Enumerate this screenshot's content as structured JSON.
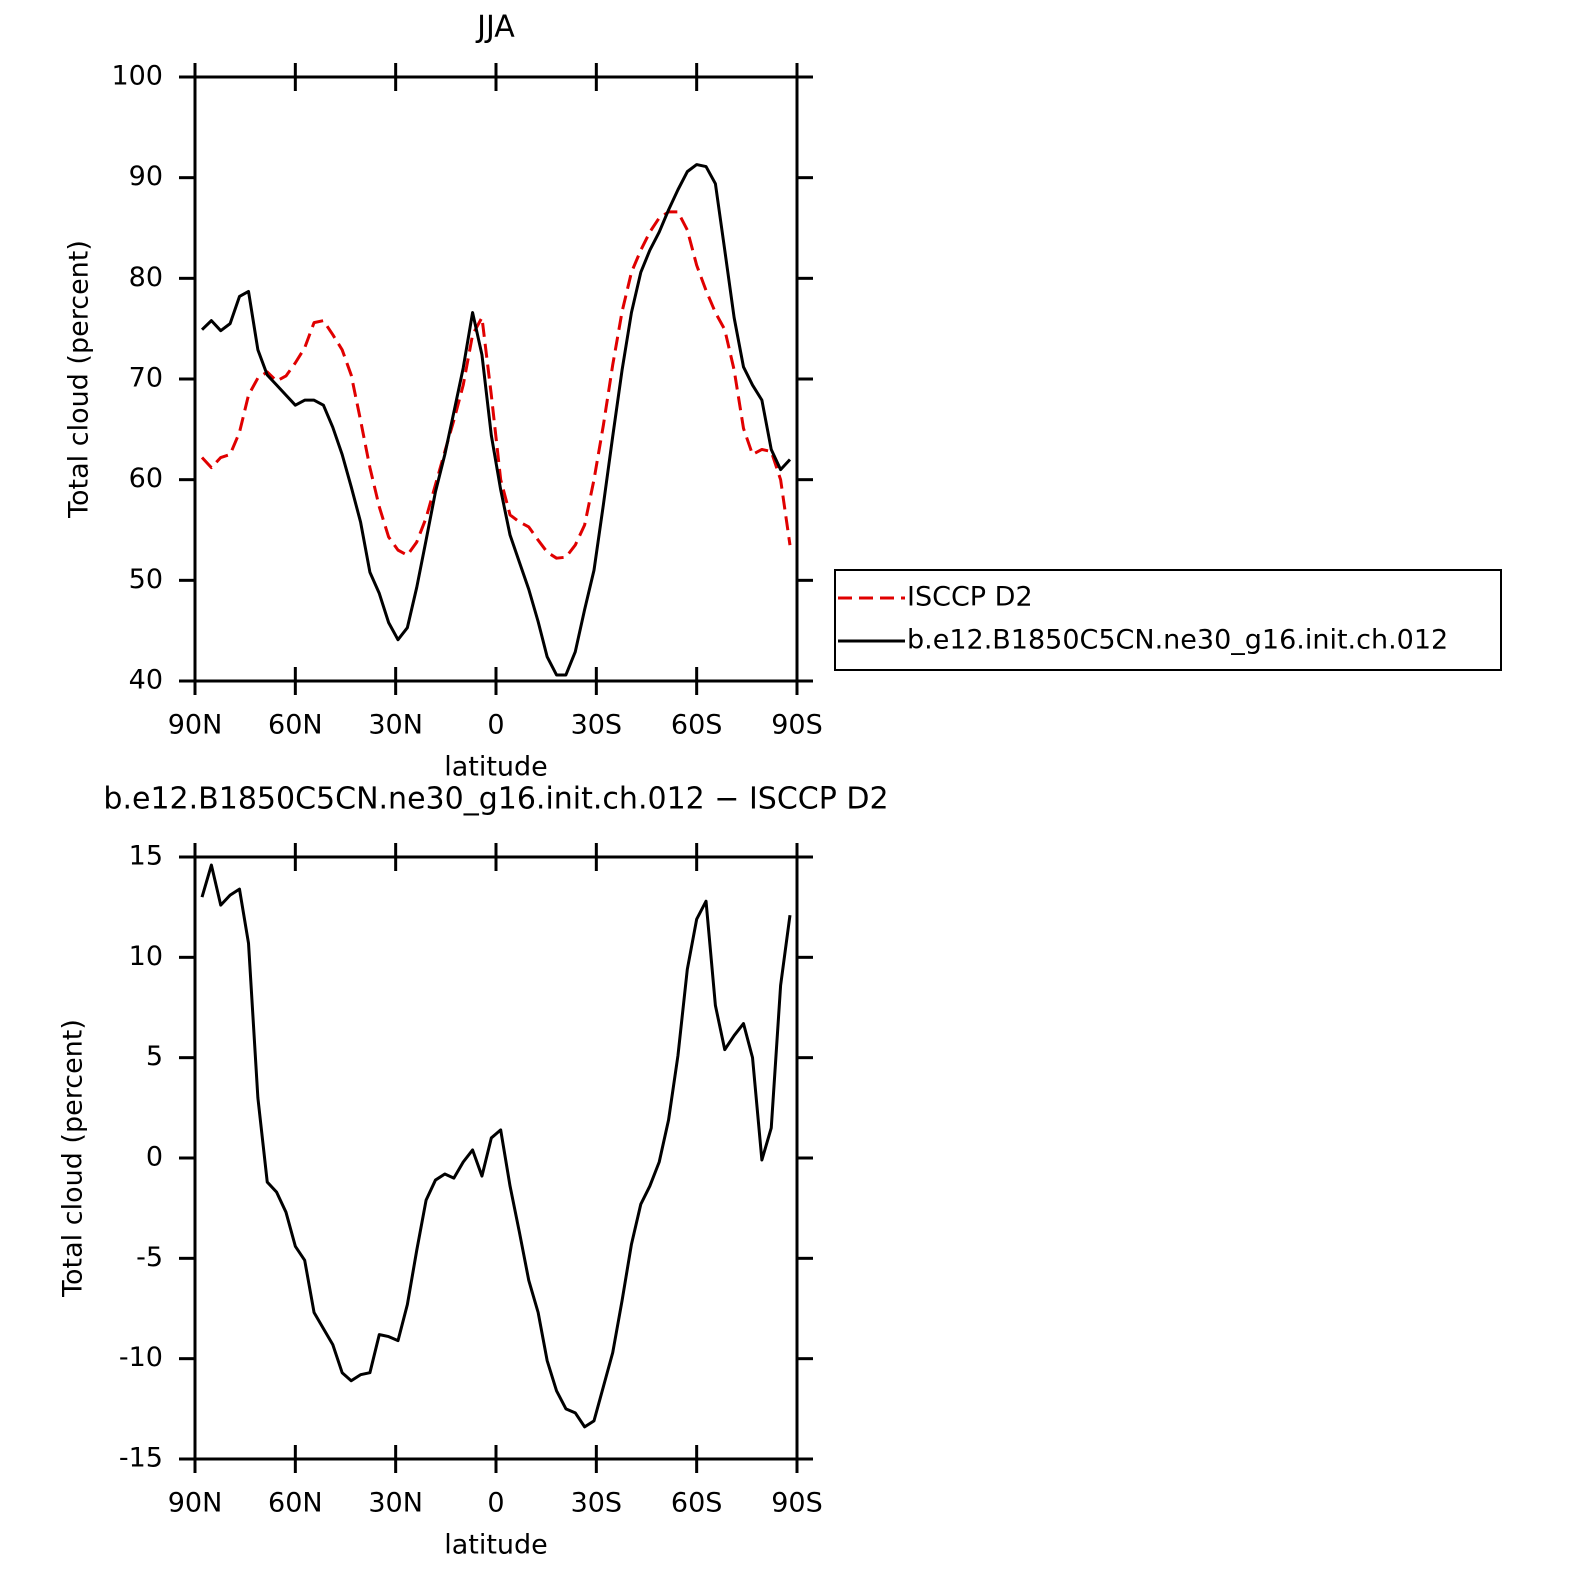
{
  "chart_data": [
    {
      "type": "line",
      "title": "JJA",
      "xlabel": "latitude",
      "ylabel": "Total cloud (percent)",
      "x": [
        87.9,
        85.1,
        82.3,
        79.5,
        76.7,
        74.0,
        71.2,
        68.4,
        65.6,
        62.8,
        60.0,
        57.2,
        54.4,
        51.6,
        48.8,
        46.0,
        43.3,
        40.5,
        37.7,
        34.9,
        32.1,
        29.3,
        26.5,
        23.7,
        20.9,
        18.1,
        15.3,
        12.6,
        9.8,
        7.0,
        4.2,
        1.4,
        -1.4,
        -4.2,
        -7.0,
        -9.8,
        -12.6,
        -15.3,
        -18.1,
        -20.9,
        -23.7,
        -26.5,
        -29.3,
        -32.1,
        -34.9,
        -37.7,
        -40.5,
        -43.3,
        -46.0,
        -48.8,
        -51.6,
        -54.4,
        -57.2,
        -60.0,
        -62.8,
        -65.6,
        -68.4,
        -71.2,
        -74.0,
        -76.7,
        -79.5,
        -82.3,
        -85.1,
        -87.9
      ],
      "series": [
        {
          "name": "ISCCP D2",
          "color": "#e00000",
          "linestyle": "dashed",
          "values": [
            62.2,
            61.2,
            62.2,
            62.5,
            64.7,
            68.4,
            70.1,
            70.7,
            69.8,
            70.3,
            71.6,
            73.1,
            75.6,
            75.8,
            74.4,
            72.9,
            70.4,
            65.9,
            61.2,
            57.3,
            54.3,
            53.0,
            52.5,
            53.8,
            56.2,
            59.5,
            62.8,
            65.9,
            69.4,
            74.4,
            76.1,
            68.4,
            60.0,
            56.5,
            55.8,
            55.3,
            54.0,
            52.8,
            52.2,
            52.3,
            53.5,
            55.5,
            60.0,
            65.4,
            71.4,
            76.7,
            80.6,
            82.8,
            84.6,
            86.0,
            86.6,
            86.6,
            84.8,
            81.3,
            78.8,
            76.6,
            74.9,
            70.9,
            65.1,
            62.5,
            63.0,
            62.8,
            60.0,
            53.5
          ]
        },
        {
          "name": "b.e12.B1850C5CN.ne30_g16.init.ch.012",
          "color": "#000000",
          "linestyle": "solid",
          "values": [
            74.9,
            75.8,
            74.8,
            75.5,
            78.2,
            78.7,
            72.9,
            70.4,
            69.4,
            68.4,
            67.4,
            67.9,
            67.9,
            67.4,
            65.2,
            62.5,
            59.3,
            55.8,
            50.8,
            48.7,
            45.8,
            44.1,
            45.3,
            49.3,
            54.0,
            58.8,
            62.5,
            66.7,
            71.1,
            76.6,
            72.4,
            64.4,
            59.0,
            54.5,
            51.8,
            49.1,
            45.9,
            42.4,
            40.6,
            40.6,
            42.9,
            47.1,
            51.0,
            57.5,
            64.3,
            70.9,
            76.6,
            80.6,
            82.8,
            84.6,
            86.8,
            88.8,
            90.6,
            91.3,
            91.1,
            89.4,
            82.8,
            76.1,
            71.2,
            69.4,
            67.9,
            63.0,
            61.0,
            62.0
          ]
        }
      ],
      "xlim": [
        90,
        -90
      ],
      "xticks": [
        {
          "value": 90,
          "label": "90N"
        },
        {
          "value": 60,
          "label": "60N"
        },
        {
          "value": 30,
          "label": "30N"
        },
        0,
        {
          "value": -30,
          "label": "30S"
        },
        {
          "value": -60,
          "label": "60S"
        },
        {
          "value": -90,
          "label": "90S"
        }
      ],
      "ylim": [
        40,
        100
      ],
      "yticks": [
        40,
        50,
        60,
        70,
        80,
        90,
        100
      ],
      "legend": "right"
    },
    {
      "type": "line",
      "title": "b.e12.B1850C5CN.ne30_g16.init.ch.012 − ISCCP D2",
      "xlabel": "latitude",
      "ylabel": "Total cloud (percent)",
      "x": [
        87.9,
        85.1,
        82.3,
        79.5,
        76.7,
        74.0,
        71.2,
        68.4,
        65.6,
        62.8,
        60.0,
        57.2,
        54.4,
        51.6,
        48.8,
        46.0,
        43.3,
        40.5,
        37.7,
        34.9,
        32.1,
        29.3,
        26.5,
        23.7,
        20.9,
        18.1,
        15.3,
        12.6,
        9.8,
        7.0,
        4.2,
        1.4,
        -1.4,
        -4.2,
        -7.0,
        -9.8,
        -12.6,
        -15.3,
        -18.1,
        -20.9,
        -23.7,
        -26.5,
        -29.3,
        -32.1,
        -34.9,
        -37.7,
        -40.5,
        -43.3,
        -46.0,
        -48.8,
        -51.6,
        -54.4,
        -57.2,
        -60.0,
        -62.8,
        -65.6,
        -68.4,
        -71.2,
        -74.0,
        -76.7,
        -79.5,
        -82.3,
        -85.1,
        -87.9
      ],
      "series": [
        {
          "color": "#000000",
          "linestyle": "solid",
          "values": [
            13.0,
            14.6,
            12.6,
            13.1,
            13.4,
            10.7,
            3.0,
            -1.2,
            -1.7,
            -2.7,
            -4.4,
            -5.1,
            -7.7,
            -8.5,
            -9.3,
            -10.7,
            -11.1,
            -10.8,
            -10.7,
            -8.8,
            -8.9,
            -9.1,
            -7.3,
            -4.6,
            -2.1,
            -1.1,
            -0.8,
            -1.0,
            -0.2,
            0.4,
            -0.9,
            1.0,
            1.4,
            -1.4,
            -3.7,
            -6.1,
            -7.7,
            -10.1,
            -11.6,
            -12.5,
            -12.7,
            -13.4,
            -13.1,
            -11.4,
            -9.7,
            -7.1,
            -4.3,
            -2.3,
            -1.4,
            -0.2,
            1.9,
            5.1,
            9.4,
            11.9,
            12.8,
            7.6,
            5.4,
            6.1,
            6.7,
            5.0,
            -0.1,
            1.5,
            8.6,
            12.1
          ]
        }
      ],
      "xlim": [
        90,
        -90
      ],
      "xticks": [
        {
          "value": 90,
          "label": "90N"
        },
        {
          "value": 60,
          "label": "60N"
        },
        {
          "value": 30,
          "label": "30N"
        },
        0,
        {
          "value": -30,
          "label": "30S"
        },
        {
          "value": -60,
          "label": "60S"
        },
        {
          "value": -90,
          "label": "90S"
        }
      ],
      "ylim": [
        -15,
        15
      ],
      "yticks": [
        -15,
        -10,
        -5,
        0,
        5,
        10,
        15
      ]
    }
  ]
}
